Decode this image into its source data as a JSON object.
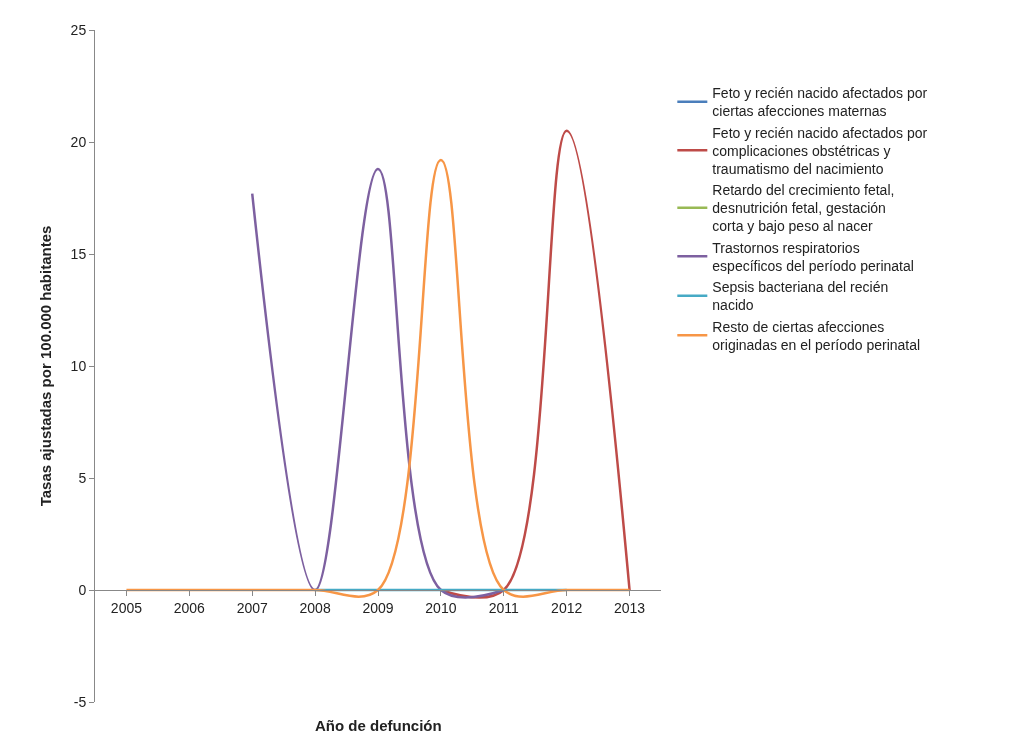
{
  "chart_data": {
    "type": "line",
    "xlabel": "Año de defunción",
    "ylabel": "Tasas ajustadas por 100.000 habitantes",
    "categories": [
      "2005",
      "2006",
      "2007",
      "2008",
      "2009",
      "2010",
      "2011",
      "2012",
      "2013"
    ],
    "series": [
      {
        "name": "Feto y recién nacido afectados por ciertas afecciones maternas",
        "color": "#4a7ebb",
        "values": [
          null,
          null,
          null,
          null,
          null,
          null,
          null,
          null,
          null
        ]
      },
      {
        "name": "Feto y recién nacido afectados por complicaciones obstétricas y traumatismo del nacimiento",
        "color": "#be4b48",
        "values": [
          null,
          null,
          null,
          null,
          null,
          0,
          0,
          20.5,
          0
        ]
      },
      {
        "name": "Retardo del crecimiento fetal, desnutrición fetal, gestación corta y bajo peso al nacer",
        "color": "#98b954",
        "values": [
          null,
          null,
          null,
          null,
          null,
          null,
          null,
          null,
          null
        ]
      },
      {
        "name": "Trastornos respiratorios específicos del período perinatal",
        "color": "#7d60a0",
        "values": [
          null,
          null,
          17.7,
          0,
          18.8,
          0,
          0,
          null,
          null
        ]
      },
      {
        "name": "Sepsis bacteriana del recién nacido",
        "color": "#46aac5",
        "values": [
          null,
          null,
          null,
          0,
          0,
          0,
          0,
          0,
          null
        ]
      },
      {
        "name": "Resto de ciertas afecciones originadas en el período perinatal",
        "color": "#f79646",
        "values": [
          0,
          0,
          0,
          0,
          0,
          19.2,
          0,
          0,
          0
        ]
      }
    ],
    "ylim": [
      -5,
      25
    ],
    "yticks": [
      -5,
      0,
      5,
      10,
      15,
      20,
      25
    ],
    "legend": "right",
    "marker": "none",
    "line_style": "solid"
  }
}
